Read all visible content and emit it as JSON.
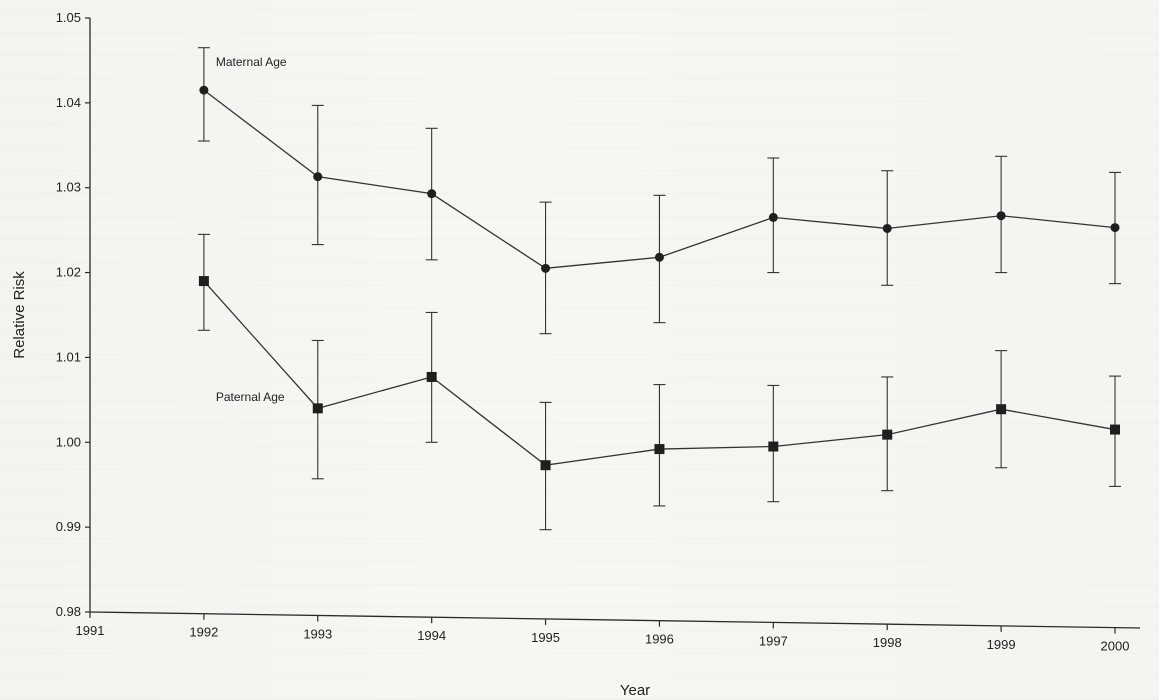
{
  "chart_data": {
    "type": "line",
    "title": "",
    "xlabel": "Year",
    "ylabel": "Relative Risk",
    "x": [
      1992,
      1993,
      1994,
      1995,
      1996,
      1997,
      1998,
      1999,
      2000
    ],
    "xlim": [
      1991,
      2000
    ],
    "x_ticks": [
      "1991",
      "1992",
      "1993",
      "1994",
      "1995",
      "1996",
      "1997",
      "1998",
      "1999",
      "2000"
    ],
    "ylim": [
      0.98,
      1.05
    ],
    "y_ticks": [
      "0.98",
      "0.99",
      "1.00",
      "1.01",
      "1.02",
      "1.03",
      "1.04",
      "1.05"
    ],
    "grid": false,
    "legend": "none",
    "series": [
      {
        "name": "Maternal Age",
        "marker": "circle",
        "color": "#333333",
        "values": [
          1.0415,
          1.0313,
          1.0293,
          1.0205,
          1.0218,
          1.0265,
          1.0252,
          1.0267,
          1.0253
        ],
        "error_low": [
          1.0355,
          1.0233,
          1.0215,
          1.0128,
          1.0141,
          1.02,
          1.0185,
          1.02,
          1.0187
        ],
        "error_high": [
          1.0465,
          1.0397,
          1.037,
          1.0283,
          1.0291,
          1.0335,
          1.032,
          1.0337,
          1.0318
        ]
      },
      {
        "name": "Paternal Age",
        "marker": "square",
        "color": "#333333",
        "values": [
          1.019,
          1.004,
          1.0077,
          0.9973,
          0.9992,
          0.9995,
          1.0009,
          1.0039,
          1.0015
        ],
        "error_low": [
          1.0132,
          0.9957,
          1.0,
          0.9897,
          0.9925,
          0.993,
          0.9943,
          0.997,
          0.9948
        ],
        "error_high": [
          1.0245,
          1.012,
          1.0153,
          1.0047,
          1.0068,
          1.0067,
          1.0077,
          1.0108,
          1.0078
        ]
      }
    ]
  }
}
